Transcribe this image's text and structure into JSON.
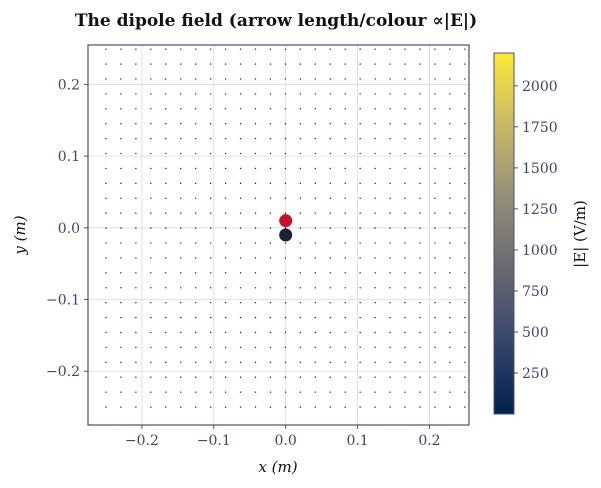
{
  "chart_data": {
    "type": "quiver",
    "title": "The dipole field (arrow length/colour ∝|E|)",
    "xlabel": "x (m)",
    "ylabel": "y (m)",
    "xlim": [
      -0.275,
      0.255
    ],
    "ylim": [
      -0.275,
      0.255
    ],
    "xticks": [
      -0.2,
      -0.1,
      0.0,
      0.1,
      0.2
    ],
    "xtick_labels": [
      "−0.2",
      "−0.1",
      "0.0",
      "0.1",
      "0.2"
    ],
    "yticks": [
      -0.2,
      -0.1,
      0.0,
      0.1,
      0.2
    ],
    "ytick_labels": [
      "−0.2",
      "−0.1",
      "0.0",
      "0.1",
      "0.2"
    ],
    "grid": true,
    "grid_spacing_m": 0.0208,
    "grid_extent_m": [
      -0.25,
      0.25
    ],
    "charges": [
      {
        "name": "positive",
        "x": 0.0,
        "y": 0.01,
        "color": "#c8102e"
      },
      {
        "name": "negative",
        "x": 0.0,
        "y": -0.01,
        "color": "#1c2233"
      }
    ],
    "colorbar": {
      "label": "|E| (V/m)",
      "range": [
        0,
        2200
      ],
      "ticks": [
        250,
        500,
        750,
        1000,
        1250,
        1500,
        1750,
        2000
      ],
      "tick_labels": [
        "250",
        "500",
        "750",
        "1000",
        "1250",
        "1500",
        "1750",
        "2000"
      ],
      "colormap": "cividis",
      "colors": [
        "#00224e",
        "#35456c",
        "#666970",
        "#948e77",
        "#c8b866",
        "#fee838"
      ]
    },
    "clip_max_field": 2200
  }
}
